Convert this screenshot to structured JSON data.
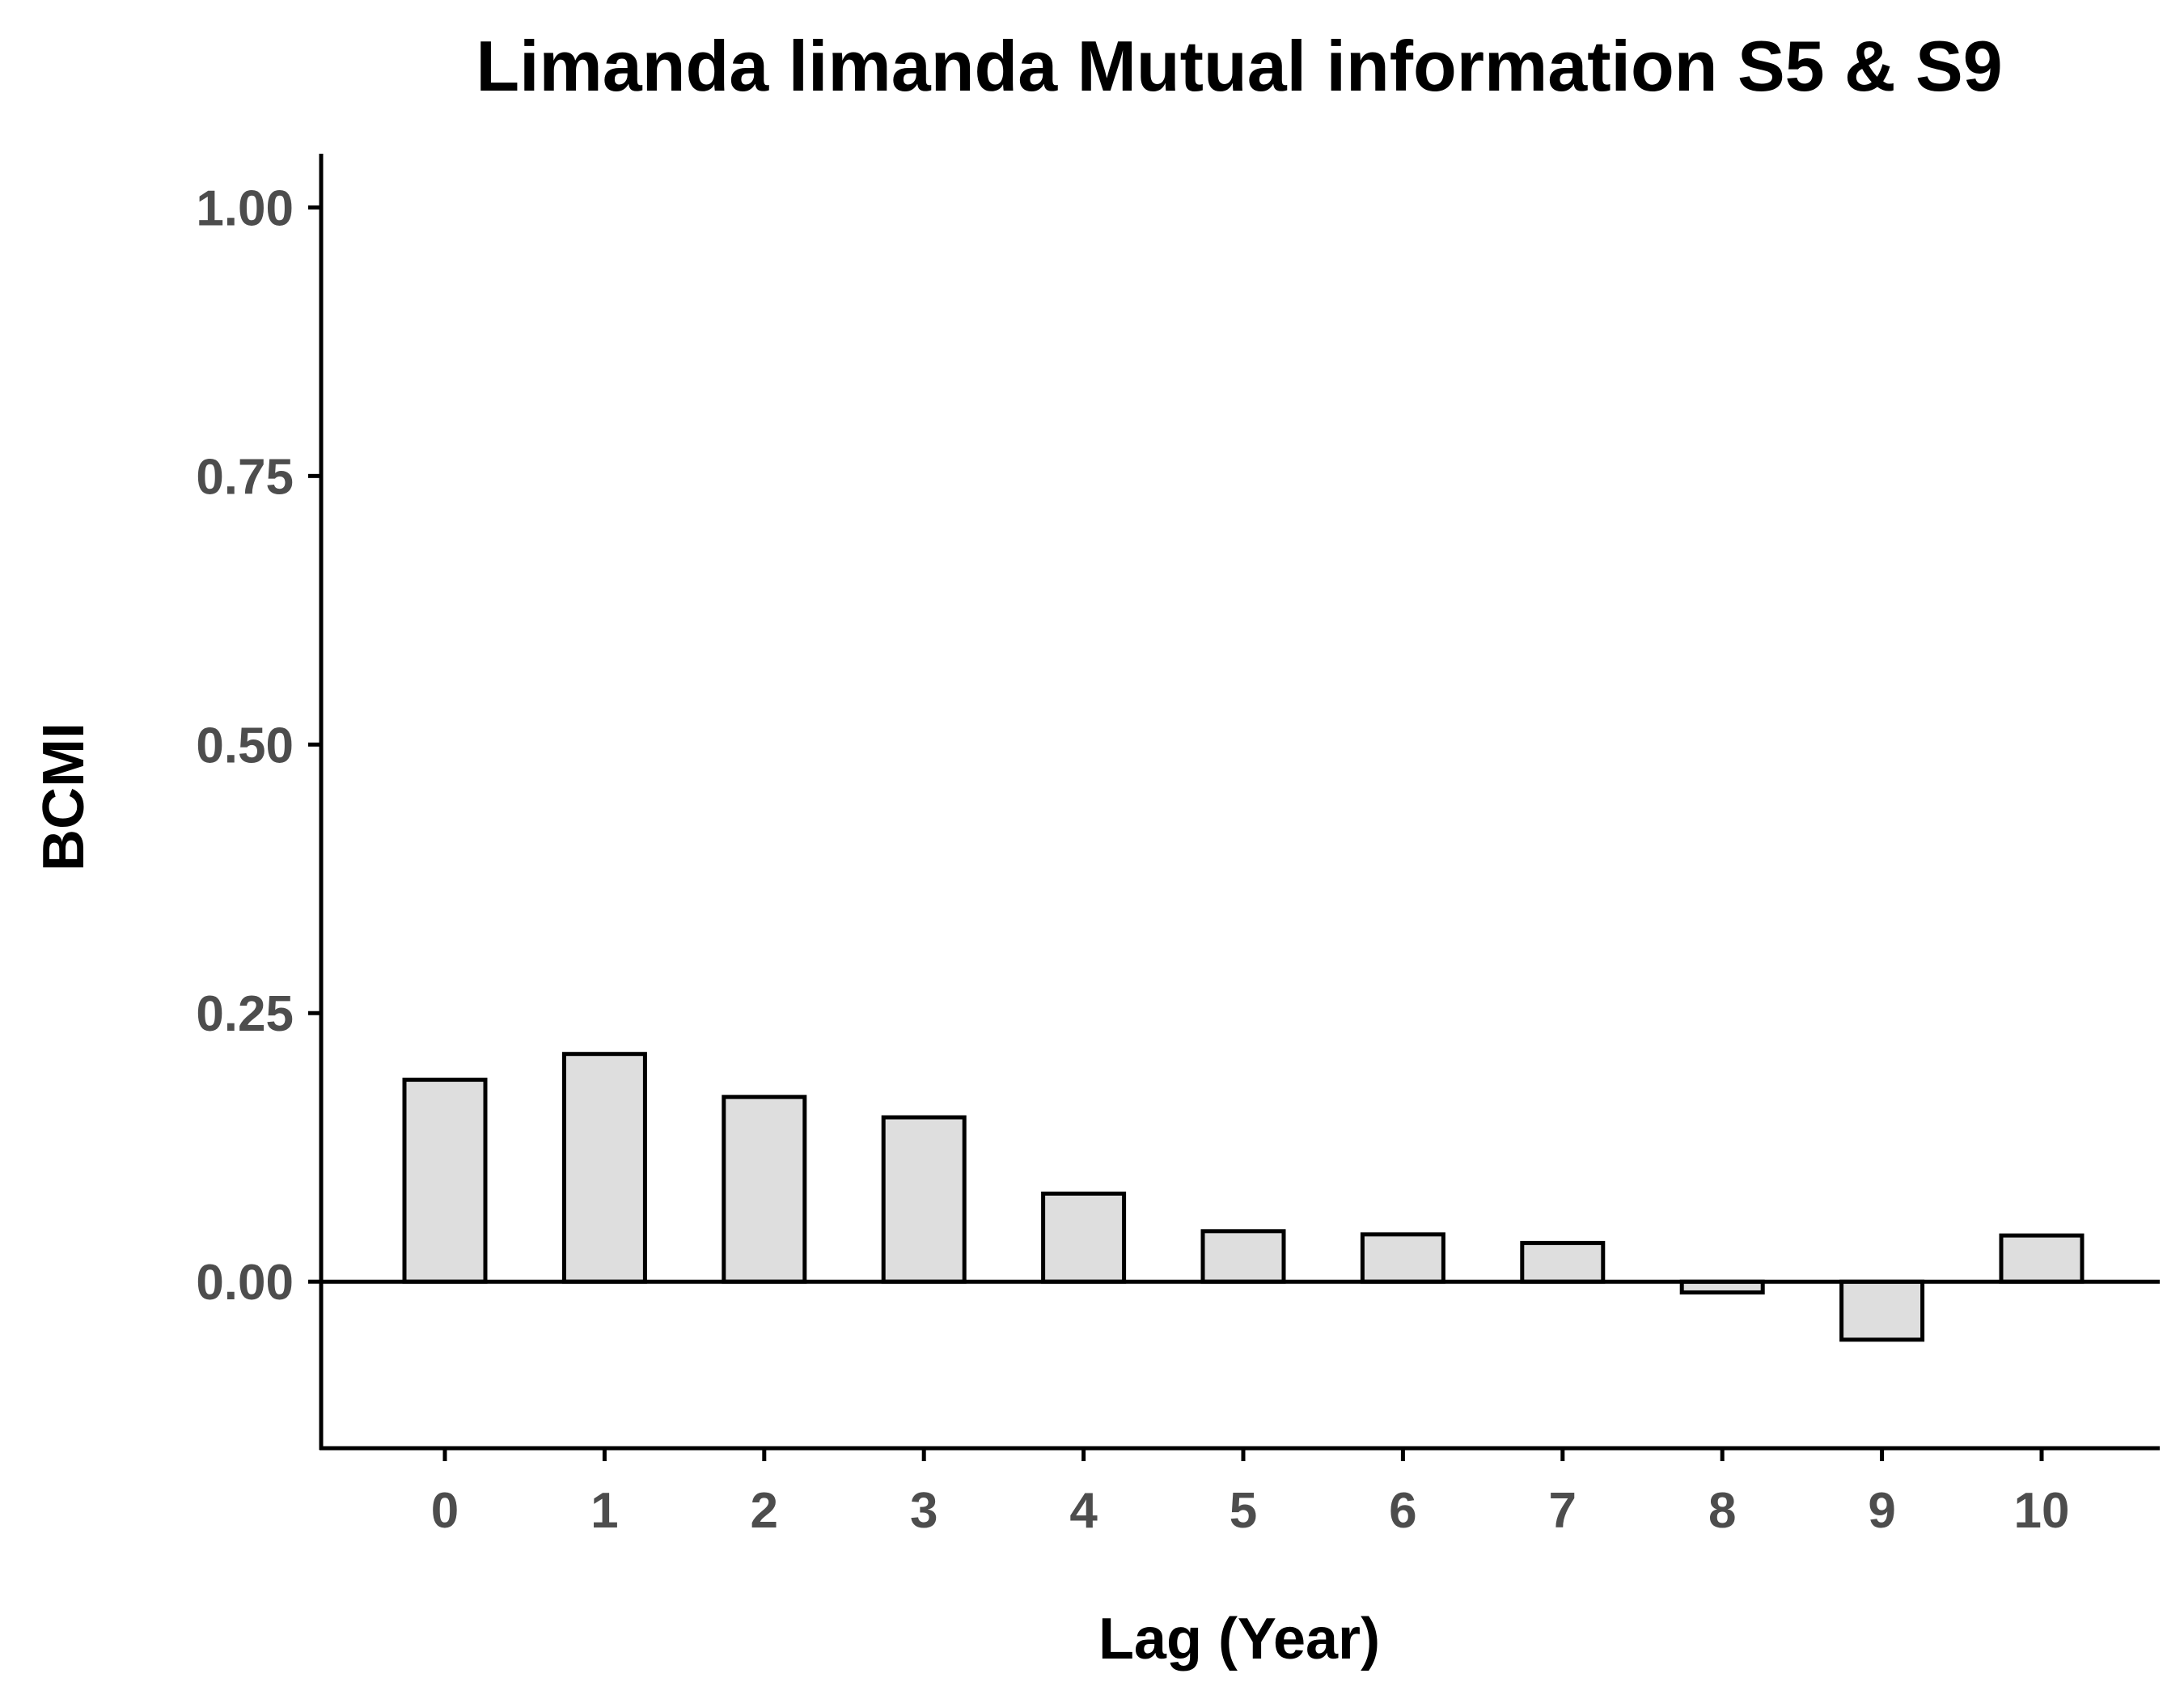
{
  "chart_data": {
    "type": "bar",
    "title": "Limanda limanda Mutual information S5 & S9",
    "xlabel": "Lag (Year)",
    "ylabel": "BCMI",
    "categories": [
      "0",
      "1",
      "2",
      "3",
      "4",
      "5",
      "6",
      "7",
      "8",
      "9",
      "10"
    ],
    "values": [
      0.188,
      0.212,
      0.172,
      0.153,
      0.082,
      0.047,
      0.044,
      0.036,
      -0.01,
      -0.054,
      0.043
    ],
    "ylim": [
      -0.155,
      1.05
    ],
    "yticks": [
      "0.00",
      "0.25",
      "0.50",
      "0.75",
      "1.00"
    ],
    "grid": false,
    "legend": "none",
    "colors": {
      "bar_fill": "#dedede",
      "bar_stroke": "#000000",
      "axis": "#000000",
      "tick_text": "#4d4d4d"
    }
  }
}
